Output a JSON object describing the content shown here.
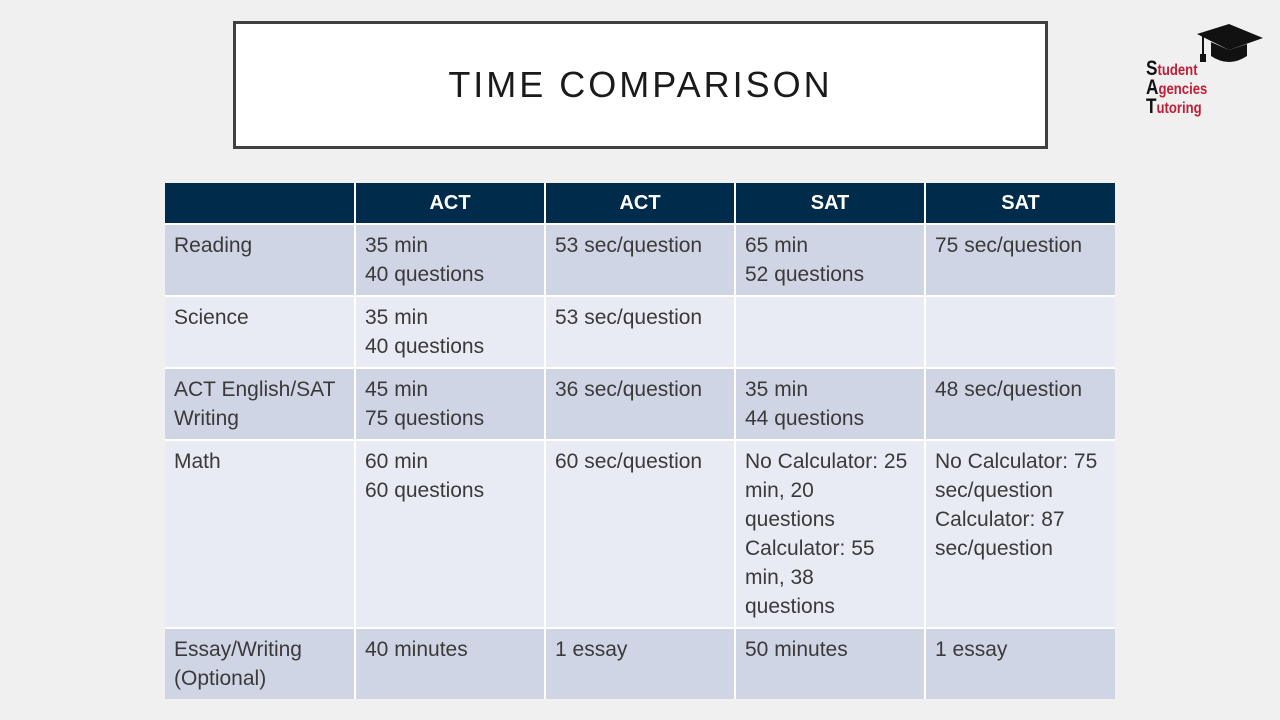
{
  "title": "TIME COMPARISON",
  "logo": {
    "lines": [
      {
        "initial": "S",
        "rest": "tudent"
      },
      {
        "initial": "A",
        "rest": "gencies"
      },
      {
        "initial": "T",
        "rest": "utoring"
      }
    ]
  },
  "table": {
    "headers": [
      "",
      "ACT",
      "ACT",
      "SAT",
      "SAT"
    ],
    "rows": [
      {
        "label": [
          "Reading"
        ],
        "cells": [
          [
            "35 min",
            "40 questions"
          ],
          [
            "53 sec/question"
          ],
          [
            "65 min",
            "52 questions"
          ],
          [
            "75 sec/question"
          ]
        ]
      },
      {
        "label": [
          "Science"
        ],
        "cells": [
          [
            "35 min",
            "40 questions"
          ],
          [
            "53 sec/question"
          ],
          [],
          []
        ]
      },
      {
        "label": [
          "ACT English/SAT",
          "Writing"
        ],
        "cells": [
          [
            "45 min",
            "75 questions"
          ],
          [
            "36 sec/question"
          ],
          [
            "35 min",
            "44 questions"
          ],
          [
            "48 sec/question"
          ]
        ]
      },
      {
        "label": [
          "Math"
        ],
        "cells": [
          [
            "60 min",
            "60 questions"
          ],
          [
            "60 sec/question"
          ],
          [
            "No Calculator: 25",
            "min, 20",
            "questions",
            "Calculator: 55",
            "min, 38",
            "questions"
          ],
          [
            "No Calculator: 75",
            "sec/question",
            "Calculator: 87",
            "sec/question"
          ]
        ]
      },
      {
        "label": [
          "Essay/Writing",
          "(Optional)"
        ],
        "cells": [
          [
            "40 minutes"
          ],
          [
            "1 essay"
          ],
          [
            "50 minutes"
          ],
          [
            "1 essay"
          ]
        ]
      }
    ]
  },
  "colors": {
    "header_bg": "#002b4a",
    "row_dark": "#cfd5e4",
    "row_light": "#e8ebf3",
    "logo_red": "#c21d36"
  }
}
